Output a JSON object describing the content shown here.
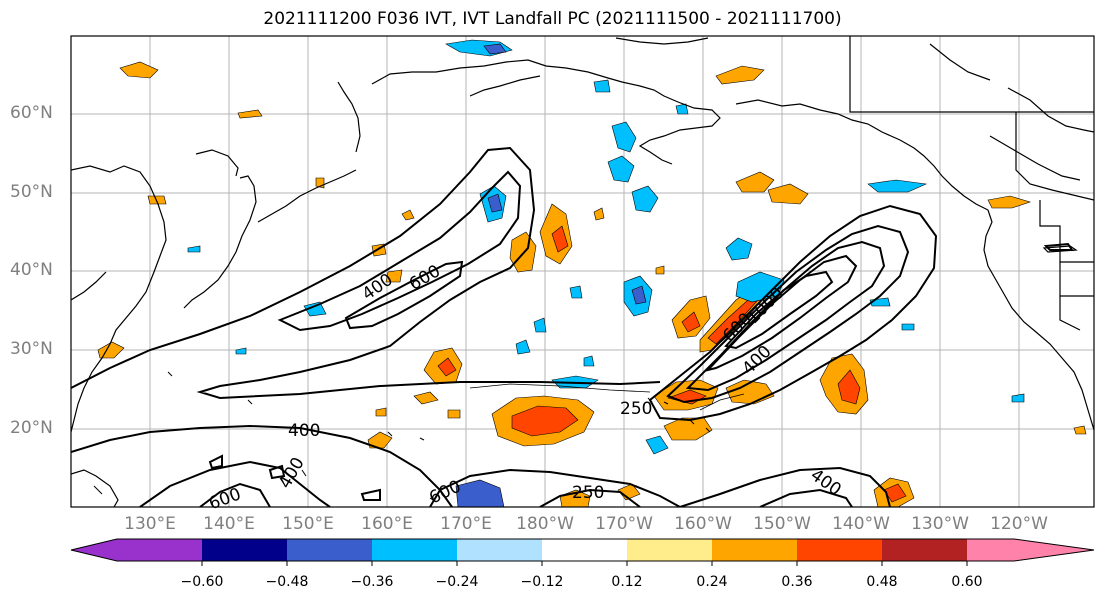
{
  "title": "2021111200 F036 IVT, IVT Landfall PC (2021111500 - 2021111700)",
  "lat_labels": [
    "60°N",
    "50°N",
    "40°N",
    "30°N",
    "20°N"
  ],
  "lon_labels": [
    "130°E",
    "140°E",
    "150°E",
    "160°E",
    "170°E",
    "180°W",
    "170°W",
    "160°W",
    "150°W",
    "140°W",
    "130°W",
    "120°W"
  ],
  "contour_labels": [
    "400",
    "600",
    "600",
    "1000",
    "400",
    "250",
    "400",
    "400",
    "600",
    "250",
    "400",
    "600"
  ],
  "colorbar": {
    "ticks": [
      "−0.60",
      "−0.48",
      "−0.36",
      "−0.24",
      "−0.12",
      "0.12",
      "0.24",
      "0.36",
      "0.48",
      "0.60"
    ],
    "colors": [
      "#9932cc",
      "#00008b",
      "#3a5fcd",
      "#00bfff",
      "#b0e2ff",
      "#ffffff",
      "#ffec8b",
      "#ffa500",
      "#ff4500",
      "#b22222",
      "#ff82ab"
    ]
  }
}
